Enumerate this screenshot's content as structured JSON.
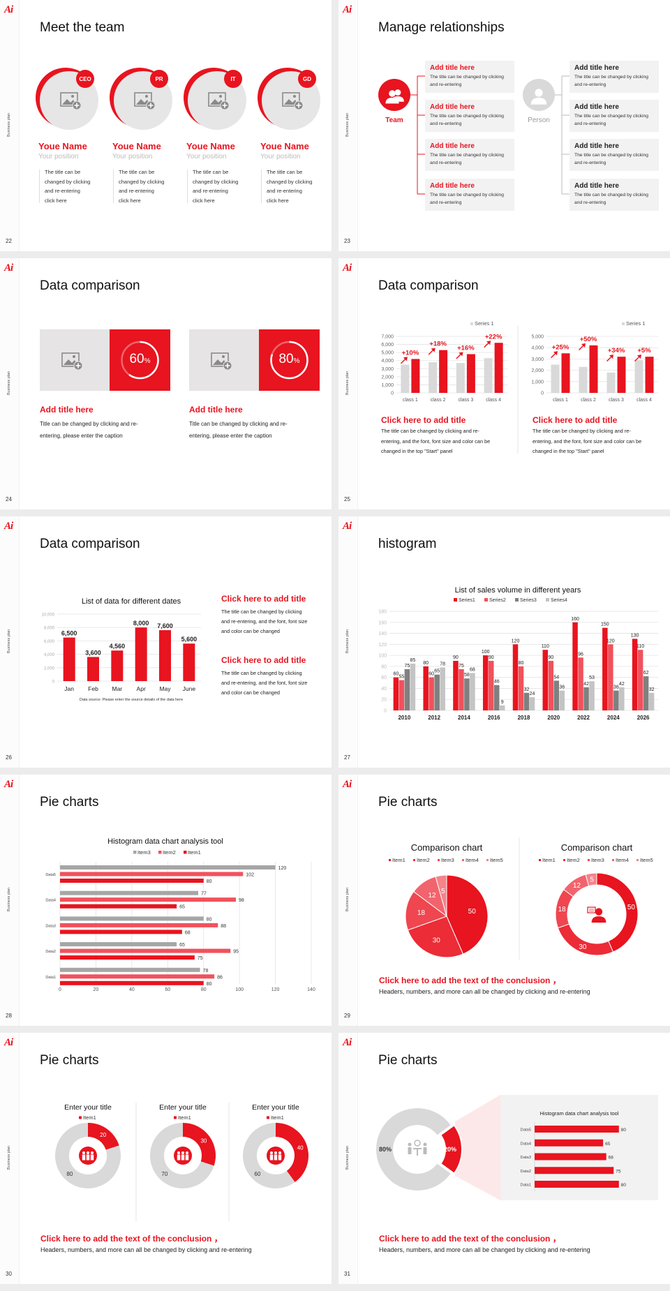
{
  "deck": {
    "logo": "Ai",
    "side_label": "Business plan"
  },
  "colors": {
    "accent": "#e8141f",
    "accent_light": "#f0525c",
    "gray": "#d9d9d9",
    "dark_gray": "#808080",
    "panel": "#f2f2f2",
    "pink": "#fde8e9"
  },
  "slides": [
    {
      "page": "22",
      "title": "Meet the team",
      "members": [
        {
          "badge": "CEO",
          "name": "Youe Name",
          "position": "Your position",
          "desc": [
            "The title can be",
            "changed by clicking",
            "and re-entering",
            "click here"
          ]
        },
        {
          "badge": "PR",
          "name": "Youe Name",
          "position": "Your position",
          "desc": [
            "The title can be",
            "changed by clicking",
            "and re-entering",
            "click here"
          ]
        },
        {
          "badge": "IT",
          "name": "Youe Name",
          "position": "Your position",
          "desc": [
            "The title can be",
            "changed by clicking",
            "and re-entering",
            "click here"
          ]
        },
        {
          "badge": "GD",
          "name": "Youe Name",
          "position": "Your position",
          "desc": [
            "The title can be",
            "changed by clicking",
            "and re-entering",
            "click here"
          ]
        }
      ]
    },
    {
      "page": "23",
      "title": "Manage relationships",
      "team": {
        "label": "Team",
        "icon": "user-group-icon",
        "items": [
          {
            "title": "Add title here",
            "desc": [
              "The title can be changed by clicking",
              "and re-entering"
            ]
          },
          {
            "title": "Add title here",
            "desc": [
              "The title can be changed by clicking",
              "and re-entering"
            ]
          },
          {
            "title": "Add title here",
            "desc": [
              "The title can be changed by clicking",
              "and re-entering"
            ]
          },
          {
            "title": "Add title here",
            "desc": [
              "The title can be changed by clicking",
              "and re-entering"
            ]
          }
        ]
      },
      "person": {
        "label": "Person",
        "icon": "user-icon",
        "items": [
          {
            "title": "Add title here",
            "desc": [
              "The title can be changed by clicking",
              "and re-entering"
            ]
          },
          {
            "title": "Add title here",
            "desc": [
              "The title can be changed by clicking",
              "and re-entering"
            ]
          },
          {
            "title": "Add title here",
            "desc": [
              "The title can be changed by clicking",
              "and re-entering"
            ]
          },
          {
            "title": "Add title here",
            "desc": [
              "The title can be changed by clicking",
              "and re-entering"
            ]
          }
        ]
      }
    },
    {
      "page": "24",
      "title": "Data comparison",
      "cards": [
        {
          "progress": 60,
          "value": "60",
          "unit": "%",
          "heading": "Add title here",
          "desc": [
            "Title can be changed by clicking and re-",
            "entering, please enter the caption"
          ]
        },
        {
          "progress": 80,
          "value": "80",
          "unit": "%",
          "heading": "Add title here",
          "desc": [
            "Title can be changed by clicking and re-",
            "entering, please enter the caption"
          ]
        }
      ]
    },
    {
      "page": "25",
      "title": "Data comparison",
      "blocks": [
        {
          "heading": "Click here to add title",
          "desc": [
            "The title can be changed by clicking and re-",
            "entering, and the font, font size and color can be",
            "changed in the top \"Start\" panel"
          ]
        },
        {
          "heading": "Click here to add title",
          "desc": [
            "The title can be changed by clicking and re-",
            "entering, and the font, font size and color can be",
            "changed in the top \"Start\" panel"
          ]
        }
      ]
    },
    {
      "page": "26",
      "title": "Data comparison",
      "blocks": [
        {
          "heading": "Click here to add title",
          "desc": [
            "The title can be changed by clicking",
            "and re-entering, and the font, font size",
            "and color can be changed"
          ]
        },
        {
          "heading": "Click here to add title",
          "desc": [
            "The title can be changed by clicking",
            "and re-entering, and the font, font size",
            "and color can be changed"
          ]
        }
      ]
    },
    {
      "page": "27",
      "title": "histogram"
    },
    {
      "page": "28",
      "title": "Pie charts"
    },
    {
      "page": "29",
      "title": "Pie charts",
      "conclusion": "Click here to add the text of the conclusion ，",
      "note": "Headers, numbers, and more can all be changed by clicking and re-entering"
    },
    {
      "page": "30",
      "title": "Pie charts",
      "conclusion": "Click here to add the text of the conclusion ，",
      "note": "Headers, numbers, and more can all be changed by clicking and re-entering"
    },
    {
      "page": "31",
      "title": "Pie charts",
      "conclusion": "Click here to add the text of the conclusion ，",
      "note": "Headers, numbers, and more can all be changed by clicking and re-entering"
    }
  ],
  "chart_data": [
    {
      "type": "bar",
      "categories": [
        "class 1",
        "class 2",
        "class 3",
        "class 4"
      ],
      "series": [
        {
          "name": "Series 1",
          "color": "#d9d9d9",
          "values": [
            3500,
            3800,
            3700,
            4300
          ]
        },
        {
          "color": "#e8141f",
          "values": [
            4200,
            5300,
            4800,
            6200
          ]
        }
      ],
      "ylim": [
        0,
        7000
      ],
      "yticks": [
        "0",
        "1,000",
        "2,000",
        "3,000",
        "4,000",
        "5,000",
        "6,000",
        "7,000"
      ],
      "annotations": [
        "+10%",
        "+18%",
        "+16%",
        "+22%"
      ],
      "grid": true,
      "legend": "top-right"
    },
    {
      "type": "bar",
      "categories": [
        "class 1",
        "class 2",
        "class 3",
        "class 4"
      ],
      "series": [
        {
          "name": "Series 1",
          "color": "#d9d9d9",
          "values": [
            2500,
            2300,
            1800,
            2900
          ]
        },
        {
          "color": "#e8141f",
          "values": [
            3500,
            4200,
            3200,
            3200
          ]
        }
      ],
      "ylim": [
        0,
        5000
      ],
      "yticks": [
        "0",
        "1,000",
        "2,000",
        "3,000",
        "4,000",
        "5,000"
      ],
      "annotations": [
        "+25%",
        "+50%",
        "+34%",
        "+5%"
      ],
      "grid": true,
      "legend": "top-right"
    },
    {
      "type": "bar",
      "title": "List of data for different dates",
      "categories": [
        "Jan",
        "Feb",
        "Mar",
        "Apr",
        "May",
        "June"
      ],
      "series": [
        {
          "color": "#e8141f",
          "values": [
            6500,
            3600,
            4560,
            8000,
            7600,
            5600
          ]
        }
      ],
      "data_labels": [
        "6,500",
        "3,600",
        "4,560",
        "8,000",
        "7,600",
        "5,600"
      ],
      "ylim": [
        0,
        10000
      ],
      "yticks": [
        "0",
        "2,000",
        "4,000",
        "6,000",
        "8,000",
        "10,000"
      ],
      "note": "Data source: Please enter the source details of the data here",
      "grid": true
    },
    {
      "type": "bar",
      "title": "List of sales volume in different years",
      "categories": [
        "2010",
        "2012",
        "2014",
        "2016",
        "2018",
        "2020",
        "2022",
        "2024",
        "2026"
      ],
      "series": [
        {
          "name": "Series1",
          "color": "#e8141f",
          "values": [
            60,
            80,
            90,
            100,
            120,
            110,
            160,
            150,
            130
          ]
        },
        {
          "name": "Series2",
          "color": "#f0525c",
          "values": [
            55,
            60,
            75,
            90,
            80,
            90,
            96,
            120,
            110
          ]
        },
        {
          "name": "Series3",
          "color": "#808080",
          "values": [
            75,
            65,
            58,
            46,
            32,
            54,
            42,
            36,
            62
          ]
        },
        {
          "name": "Series4",
          "color": "#c4c4c4",
          "values": [
            85,
            78,
            68,
            9,
            24,
            36,
            53,
            42,
            32
          ]
        }
      ],
      "ylim": [
        0,
        180
      ],
      "yticks": [
        "0",
        "20",
        "40",
        "60",
        "80",
        "100",
        "120",
        "140",
        "160",
        "180"
      ],
      "grid": true,
      "legend": "top"
    },
    {
      "type": "bar",
      "orientation": "horizontal",
      "title": "Histogram data chart analysis tool",
      "categories": [
        "Data1",
        "Data2",
        "Data3",
        "Data4",
        "Data5"
      ],
      "series": [
        {
          "name": "Item3",
          "color": "#a6a6a6",
          "values": [
            78,
            65,
            80,
            77,
            120
          ]
        },
        {
          "name": "Item2",
          "color": "#f0525c",
          "values": [
            86,
            95,
            88,
            98,
            102
          ]
        },
        {
          "name": "Item1",
          "color": "#e8141f",
          "values": [
            80,
            75,
            68,
            65,
            80
          ]
        }
      ],
      "xlim": [
        0,
        140
      ],
      "xticks": [
        "0",
        "20",
        "40",
        "60",
        "80",
        "100",
        "120",
        "140"
      ],
      "grid": true,
      "legend": "top"
    },
    {
      "type": "pie",
      "title": "Comparison chart",
      "labels": [
        "Item1",
        "Item2",
        "Item3",
        "Item4",
        "Item5"
      ],
      "values": [
        50,
        30,
        18,
        12,
        5
      ],
      "colors": [
        "#e8141f",
        "#ec2c37",
        "#ef4650",
        "#f2646d",
        "#f5838a"
      ],
      "legend": "top"
    },
    {
      "type": "pie",
      "style": "donut",
      "title": "Comparison chart",
      "labels": [
        "Item1",
        "Item2",
        "Item3",
        "Item4",
        "Item5"
      ],
      "values": [
        50,
        30,
        18,
        12,
        5
      ],
      "colors": [
        "#e8141f",
        "#ec2c37",
        "#ef4650",
        "#f2646d",
        "#f5838a"
      ],
      "center_icon": "customer-service-icon",
      "legend": "top"
    },
    {
      "type": "pie",
      "style": "donut",
      "title": "Enter your title",
      "legend_items": [
        "Item1"
      ],
      "values": [
        20,
        80
      ],
      "colors": [
        "#e8141f",
        "#d9d9d9"
      ],
      "center_icon": "team-icon"
    },
    {
      "type": "pie",
      "style": "donut",
      "title": "Enter your title",
      "legend_items": [
        "Item1"
      ],
      "values": [
        30,
        70
      ],
      "colors": [
        "#e8141f",
        "#d9d9d9"
      ],
      "center_icon": "team-icon"
    },
    {
      "type": "pie",
      "style": "donut",
      "title": "Enter your title",
      "legend_items": [
        "Item1"
      ],
      "values": [
        40,
        60
      ],
      "colors": [
        "#e8141f",
        "#d9d9d9"
      ],
      "center_icon": "team-icon"
    },
    {
      "type": "pie",
      "style": "donut",
      "values": [
        20,
        80
      ],
      "data_labels": [
        "20%",
        "80%"
      ],
      "colors": [
        "#e8141f",
        "#d9d9d9"
      ],
      "center_icon": "meeting-icon"
    },
    {
      "type": "bar",
      "orientation": "horizontal",
      "title": "Histogram data chart analysis tool",
      "categories": [
        "Data1",
        "Data2",
        "Data3",
        "Data4",
        "Data5"
      ],
      "series": [
        {
          "color": "#e8141f",
          "values": [
            80,
            75,
            68,
            65,
            80
          ]
        }
      ],
      "xlim": [
        0,
        80
      ]
    }
  ]
}
